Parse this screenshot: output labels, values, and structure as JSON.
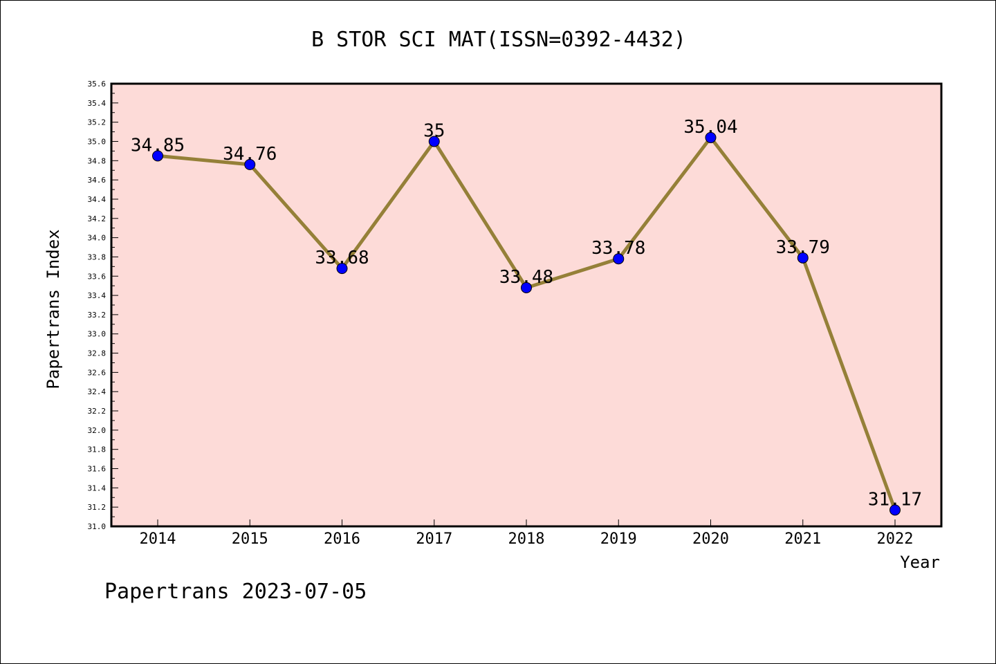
{
  "chart_data": {
    "type": "line",
    "title": "B STOR SCI MAT(ISSN=0392-4432)",
    "xlabel": "Year",
    "ylabel": "Papertrans Index",
    "categories": [
      "2014",
      "2015",
      "2016",
      "2017",
      "2018",
      "2019",
      "2020",
      "2021",
      "2022"
    ],
    "series": [
      {
        "values": [
          34.85,
          34.76,
          33.68,
          35,
          33.48,
          33.78,
          35.04,
          33.79,
          31.17
        ],
        "labels": [
          "34.85",
          "34.76",
          "33.68",
          "35",
          "33.48",
          "33.78",
          "35.04",
          "33.79",
          "31.17"
        ]
      }
    ],
    "ylim": [
      31.0,
      35.6
    ],
    "y_ticks": [
      "31.0",
      "31.2",
      "31.4",
      "31.6",
      "31.8",
      "32.0",
      "32.2",
      "32.4",
      "32.6",
      "32.8",
      "33.0",
      "33.2",
      "33.4",
      "33.6",
      "33.8",
      "34.0",
      "34.2",
      "34.4",
      "34.6",
      "34.8",
      "35.0",
      "35.2",
      "35.4",
      "35.6"
    ],
    "grid": false,
    "colors": {
      "plot_background": "#fddbd8",
      "line": "#958038",
      "marker": "#0000ff"
    }
  },
  "footer": "Papertrans 2023-07-05"
}
